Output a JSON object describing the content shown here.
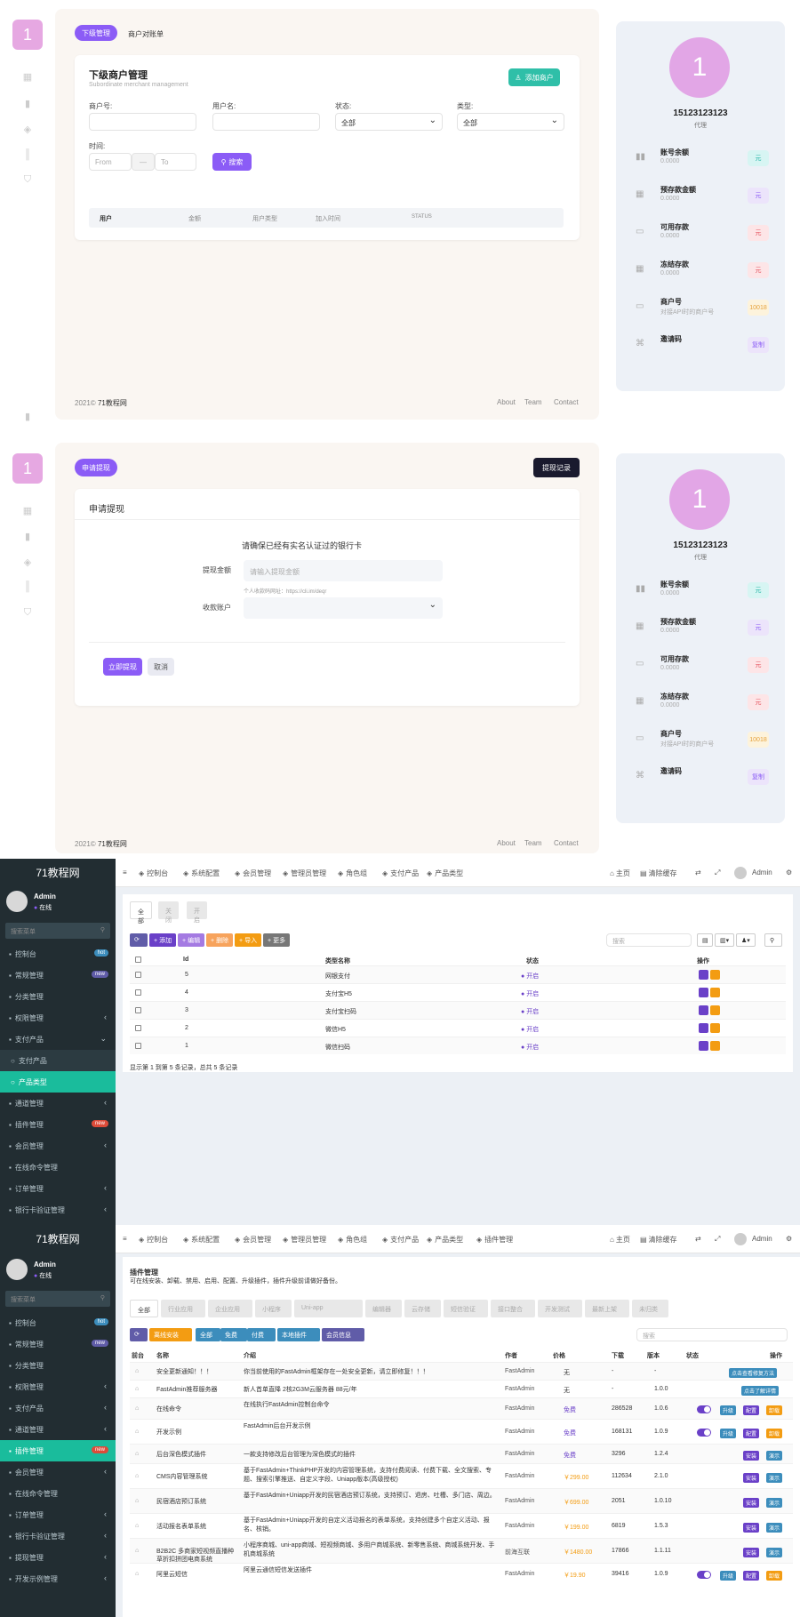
{
  "panel1": {
    "avatar": "1",
    "tabs": [
      "下级管理",
      "商户对账单"
    ],
    "title": "下级商户管理",
    "subtitle": "Subordinate merchant management",
    "add_button": "添加商户",
    "fields": {
      "merchant_no": "商户号:",
      "user_name": "用户名:",
      "status": "状态:",
      "type": "类型:",
      "time": "时间:"
    },
    "status_value": "全部",
    "type_value": "全部",
    "date_from": "From",
    "date_sep": "—",
    "date_to": "To",
    "search_button": "搜索",
    "table_headers": [
      "用户",
      "金额",
      "用户类型",
      "加入时间",
      "STATUS"
    ],
    "footer": {
      "year": "2021©",
      "site": "71教程网",
      "links": [
        "About",
        "Team",
        "Contact"
      ]
    }
  },
  "panel2": {
    "avatar": "1",
    "tab": "申请提现",
    "record_button": "提现记录",
    "card_title": "申请提现",
    "notice": "请确保已经有实名认证过的银行卡",
    "amount_label": "提现金额",
    "amount_placeholder": "请输入提现金额",
    "amount_hint": "个人收款码网址：https://cli.im/deqr",
    "account_label": "收款账户",
    "submit": "立即提现",
    "cancel": "取消",
    "footer": {
      "year": "2021©",
      "site": "71教程网",
      "links": [
        "About",
        "Team",
        "Contact"
      ]
    }
  },
  "profile": {
    "avatar": "1",
    "name": "15123123123",
    "role": "代理",
    "items": [
      {
        "title": "账号余额",
        "value": "0.0000",
        "badge": "元",
        "color": "#d7f5f3",
        "tcolor": "#29b6a8",
        "icon": "chart-icon"
      },
      {
        "title": "预存款金额",
        "value": "0.0000",
        "badge": "元",
        "color": "#ece4fb",
        "tcolor": "#8b5cf6",
        "icon": "grid-icon"
      },
      {
        "title": "可用存款",
        "value": "0.0000",
        "badge": "元",
        "color": "#fde5e7",
        "tcolor": "#e5535f",
        "icon": "card-icon"
      },
      {
        "title": "冻结存款",
        "value": "0.0000",
        "badge": "元",
        "color": "#fde5e7",
        "tcolor": "#e5535f",
        "icon": "grid-icon"
      },
      {
        "title": "商户号",
        "value": "对接API时的商户号",
        "badge": "10018",
        "color": "#fdf3dc",
        "tcolor": "#e6a23c",
        "icon": "card-icon"
      },
      {
        "title": "邀请码",
        "value": "",
        "badge": "复制",
        "color": "#ece4fb",
        "tcolor": "#8b5cf6",
        "icon": "tag-icon"
      }
    ]
  },
  "admin": {
    "brand": "71教程网",
    "user": "Admin",
    "status": "在线",
    "search_placeholder": "搜索菜单",
    "menu1": [
      {
        "label": "控制台",
        "badge": "hot",
        "bcolor": "#3c8dbc"
      },
      {
        "label": "常规管理",
        "badge": "new",
        "bcolor": "#605ca8"
      },
      {
        "label": "分类管理"
      },
      {
        "label": "权限管理",
        "arrow": "‹"
      },
      {
        "label": "支付产品",
        "arrow": "⌄",
        "open": true
      },
      {
        "label": "支付产品",
        "sub": true
      },
      {
        "label": "产品类型",
        "sub": true,
        "active": true
      },
      {
        "label": "通道管理",
        "arrow": "‹"
      },
      {
        "label": "插件管理",
        "badge": "new",
        "bcolor": "#dd4b39"
      },
      {
        "label": "会员管理",
        "arrow": "‹"
      },
      {
        "label": "在线命令管理"
      },
      {
        "label": "订单管理",
        "arrow": "‹"
      },
      {
        "label": "银行卡验证管理",
        "arrow": "‹"
      }
    ],
    "menu2": [
      {
        "label": "控制台",
        "badge": "hot",
        "bcolor": "#3c8dbc"
      },
      {
        "label": "常规管理",
        "badge": "new",
        "bcolor": "#605ca8"
      },
      {
        "label": "分类管理"
      },
      {
        "label": "权限管理",
        "arrow": "‹"
      },
      {
        "label": "支付产品",
        "arrow": "‹"
      },
      {
        "label": "通道管理",
        "arrow": "‹"
      },
      {
        "label": "插件管理",
        "badge": "new",
        "bcolor": "#dd4b39",
        "active": true
      },
      {
        "label": "会员管理",
        "arrow": "‹"
      },
      {
        "label": "在线命令管理"
      },
      {
        "label": "订单管理",
        "arrow": "‹"
      },
      {
        "label": "银行卡验证管理",
        "arrow": "‹"
      },
      {
        "label": "提现管理",
        "arrow": "‹"
      },
      {
        "label": "开发示例管理",
        "arrow": "‹"
      }
    ],
    "topnav1": [
      "控制台",
      "系统配置",
      "会员管理",
      "管理员管理",
      "角色组",
      "支付产品",
      "产品类型"
    ],
    "topnav2": [
      "控制台",
      "系统配置",
      "会员管理",
      "管理员管理",
      "角色组",
      "支付产品",
      "产品类型",
      "插件管理"
    ],
    "topright": [
      "主页",
      "清除缓存"
    ],
    "filter_tabs": [
      "全部",
      "关闭",
      "开启"
    ],
    "toolbar": [
      "添加",
      "编辑",
      "删除",
      "导入",
      "更多"
    ],
    "search_placeholder2": "搜索",
    "ptype_headers": [
      "Id",
      "类型名称",
      "状态",
      "操作"
    ],
    "ptype_rows": [
      {
        "id": "5",
        "name": "网银支付",
        "status": "开启"
      },
      {
        "id": "4",
        "name": "支付宝H5",
        "status": "开启"
      },
      {
        "id": "3",
        "name": "支付宝扫码",
        "status": "开启"
      },
      {
        "id": "2",
        "name": "微信H5",
        "status": "开启"
      },
      {
        "id": "1",
        "name": "微信扫码",
        "status": "开启"
      }
    ],
    "ptype_footer": "显示第 1 到第 5 条记录，总共 5 条记录",
    "plugin_title": "插件管理",
    "plugin_desc": "可在线安装、卸载、禁用、启用、配置、升级插件，插件升级前请做好备份。",
    "plugin_tabs": [
      "全部",
      "行业应用",
      "企业应用",
      "小程序",
      "Uni-app",
      "编辑器",
      "云存储",
      "短信验证",
      "接口整合",
      "开发测试",
      "最新上架",
      "未归类"
    ],
    "plugin_toolbar": [
      "离线安装",
      "全部",
      "免费",
      "付费",
      "本地插件",
      "会员信息"
    ],
    "plugin_headers": [
      "前台",
      "名称",
      "介绍",
      "作者",
      "价格",
      "下载",
      "版本",
      "状态",
      "操作"
    ],
    "plugin_rows": [
      {
        "name": "安全更新通知！！！",
        "intro": "你当前使用的FastAdmin框架存在一处安全更新，请立即修复！！！",
        "author": "FastAdmin",
        "price": "无",
        "dl": "-",
        "ver": "-",
        "act": [
          "点击查看修复方法"
        ]
      },
      {
        "name": "FastAdmin推荐服务器",
        "intro": "新人首单直降 2核2G3M云服务器 88元/年",
        "author": "FastAdmin",
        "price": "无",
        "dl": "-",
        "ver": "1.0.0",
        "act": [
          "点击了解详情"
        ]
      },
      {
        "name": "在线命令",
        "intro": "在线执行FastAdmin控制台命令",
        "author": "FastAdmin",
        "price": "免费",
        "dl": "286528",
        "ver": "1.0.6",
        "tog": true,
        "act": [
          "升级",
          "配置",
          "卸载"
        ]
      },
      {
        "name": "开发示例",
        "intro": "FastAdmin后台开发示例",
        "author": "FastAdmin",
        "price": "免费",
        "dl": "168131",
        "ver": "1.0.9",
        "tog": true,
        "act": [
          "升级",
          "配置",
          "卸载"
        ]
      },
      {
        "name": "后台深色模式插件",
        "intro": "一款支持修改后台管理为深色模式的插件",
        "author": "FastAdmin",
        "price": "免费",
        "dl": "3296",
        "ver": "1.2.4",
        "act": [
          "安装",
          "演示"
        ]
      },
      {
        "name": "CMS内容管理系统",
        "intro": "基于FastAdmin+ThinkPHP开发的内容管理系统，支持付费阅读、付费下载、全文搜索、专题、搜索引擎推送、自定义字段、Uniapp版本(高级授权)",
        "author": "FastAdmin",
        "price": "￥299.00",
        "dl": "112634",
        "ver": "2.1.0",
        "act": [
          "安装",
          "演示"
        ]
      },
      {
        "name": "民宿酒店预订系统",
        "intro": "基于FastAdmin+Uniapp开发的民宿酒店预订系统，支持预订、退房、吐槽、多门店、周边。",
        "author": "FastAdmin",
        "price": "￥699.00",
        "dl": "2051",
        "ver": "1.0.10",
        "act": [
          "安装",
          "演示"
        ]
      },
      {
        "name": "活动报名表单系统",
        "intro": "基于FastAdmin+Uniapp开发的自定义活动报名的表单系统，支持创建多个自定义活动、报名、核销。",
        "author": "FastAdmin",
        "price": "￥199.00",
        "dl": "6819",
        "ver": "1.5.3",
        "act": [
          "安装",
          "演示"
        ]
      },
      {
        "name": "B2B2C 多商家短视频直播种草折扣拼团电商系统",
        "intro": "小程序商城、uni-app商城、短视频商城、多用户商城系统、新零售系统、商城系统开发、手机商城系统",
        "author": "前海互联",
        "price": "￥1480.00",
        "dl": "17866",
        "ver": "1.1.11",
        "act": [
          "安装",
          "演示"
        ]
      },
      {
        "name": "阿里云短信",
        "intro": "阿里云通信短信发送插件",
        "author": "FastAdmin",
        "price": "￥19.90",
        "dl": "39416",
        "ver": "1.0.9",
        "tog": true,
        "act": [
          "升级",
          "配置",
          "卸载"
        ]
      }
    ]
  }
}
